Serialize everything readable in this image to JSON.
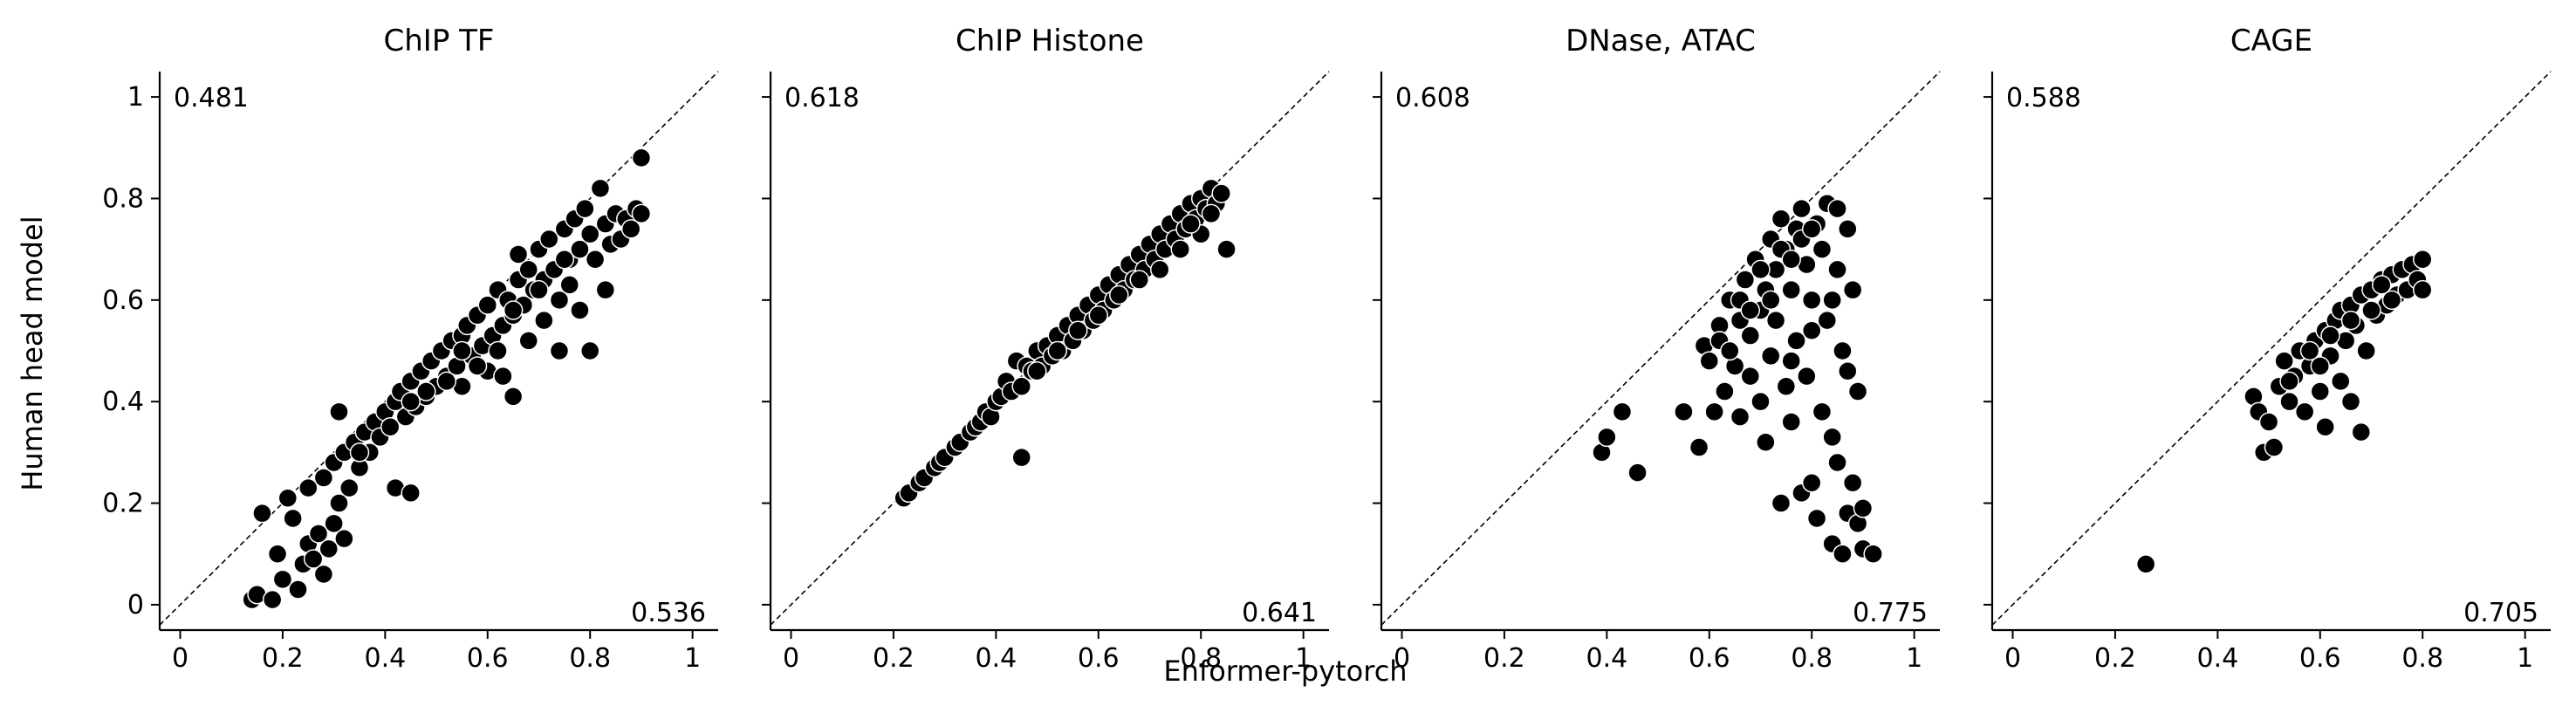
{
  "figure": {
    "ylabel": "Human head model",
    "xlabel": "Enformer-pytorch"
  },
  "chart_data": [
    {
      "type": "scatter",
      "title": "ChIP TF",
      "top_left_label": "0.481",
      "bottom_right_label": "0.536",
      "xlim": [
        -0.04,
        1.05
      ],
      "ylim": [
        -0.05,
        1.05
      ],
      "xticks": [
        "0",
        "0.2",
        "0.4",
        "0.6",
        "0.8",
        "1"
      ],
      "yticks": [
        "0",
        "0.2",
        "0.4",
        "0.6",
        "0.8",
        "1"
      ],
      "diagonal": "y=x dashed",
      "marker_color": "#000000",
      "points": [
        [
          0.14,
          0.01
        ],
        [
          0.15,
          0.02
        ],
        [
          0.16,
          0.18
        ],
        [
          0.18,
          0.01
        ],
        [
          0.19,
          0.1
        ],
        [
          0.2,
          0.05
        ],
        [
          0.21,
          0.21
        ],
        [
          0.22,
          0.17
        ],
        [
          0.23,
          0.03
        ],
        [
          0.24,
          0.08
        ],
        [
          0.25,
          0.12
        ],
        [
          0.25,
          0.23
        ],
        [
          0.26,
          0.09
        ],
        [
          0.27,
          0.14
        ],
        [
          0.28,
          0.06
        ],
        [
          0.28,
          0.25
        ],
        [
          0.29,
          0.11
        ],
        [
          0.3,
          0.16
        ],
        [
          0.3,
          0.28
        ],
        [
          0.31,
          0.2
        ],
        [
          0.31,
          0.38
        ],
        [
          0.32,
          0.13
        ],
        [
          0.32,
          0.3
        ],
        [
          0.33,
          0.23
        ],
        [
          0.34,
          0.32
        ],
        [
          0.35,
          0.27
        ],
        [
          0.36,
          0.34
        ],
        [
          0.37,
          0.3
        ],
        [
          0.38,
          0.36
        ],
        [
          0.39,
          0.33
        ],
        [
          0.4,
          0.38
        ],
        [
          0.41,
          0.35
        ],
        [
          0.42,
          0.23
        ],
        [
          0.42,
          0.4
        ],
        [
          0.43,
          0.42
        ],
        [
          0.44,
          0.37
        ],
        [
          0.45,
          0.22
        ],
        [
          0.45,
          0.44
        ],
        [
          0.46,
          0.39
        ],
        [
          0.47,
          0.46
        ],
        [
          0.48,
          0.41
        ],
        [
          0.49,
          0.48
        ],
        [
          0.5,
          0.43
        ],
        [
          0.51,
          0.5
        ],
        [
          0.52,
          0.45
        ],
        [
          0.53,
          0.52
        ],
        [
          0.54,
          0.47
        ],
        [
          0.55,
          0.53
        ],
        [
          0.55,
          0.43
        ],
        [
          0.56,
          0.55
        ],
        [
          0.57,
          0.49
        ],
        [
          0.58,
          0.57
        ],
        [
          0.59,
          0.51
        ],
        [
          0.6,
          0.59
        ],
        [
          0.6,
          0.46
        ],
        [
          0.61,
          0.53
        ],
        [
          0.62,
          0.62
        ],
        [
          0.63,
          0.55
        ],
        [
          0.63,
          0.45
        ],
        [
          0.64,
          0.6
        ],
        [
          0.65,
          0.41
        ],
        [
          0.65,
          0.57
        ],
        [
          0.66,
          0.69
        ],
        [
          0.66,
          0.64
        ],
        [
          0.67,
          0.59
        ],
        [
          0.68,
          0.52
        ],
        [
          0.68,
          0.66
        ],
        [
          0.69,
          0.62
        ],
        [
          0.7,
          0.7
        ],
        [
          0.71,
          0.56
        ],
        [
          0.71,
          0.64
        ],
        [
          0.72,
          0.72
        ],
        [
          0.73,
          0.66
        ],
        [
          0.74,
          0.6
        ],
        [
          0.74,
          0.5
        ],
        [
          0.75,
          0.74
        ],
        [
          0.76,
          0.68
        ],
        [
          0.76,
          0.63
        ],
        [
          0.77,
          0.76
        ],
        [
          0.78,
          0.7
        ],
        [
          0.78,
          0.58
        ],
        [
          0.79,
          0.78
        ],
        [
          0.8,
          0.73
        ],
        [
          0.8,
          0.5
        ],
        [
          0.81,
          0.68
        ],
        [
          0.82,
          0.82
        ],
        [
          0.83,
          0.75
        ],
        [
          0.83,
          0.62
        ],
        [
          0.84,
          0.71
        ],
        [
          0.85,
          0.77
        ],
        [
          0.86,
          0.72
        ],
        [
          0.87,
          0.76
        ],
        [
          0.88,
          0.74
        ],
        [
          0.89,
          0.78
        ],
        [
          0.9,
          0.88
        ],
        [
          0.9,
          0.77
        ],
        [
          0.35,
          0.3
        ],
        [
          0.45,
          0.4
        ],
        [
          0.55,
          0.5
        ],
        [
          0.65,
          0.58
        ],
        [
          0.7,
          0.62
        ],
        [
          0.75,
          0.68
        ],
        [
          0.62,
          0.5
        ],
        [
          0.58,
          0.47
        ],
        [
          0.52,
          0.44
        ],
        [
          0.48,
          0.42
        ]
      ]
    },
    {
      "type": "scatter",
      "title": "ChIP Histone",
      "top_left_label": "0.618",
      "bottom_right_label": "0.641",
      "xlim": [
        -0.04,
        1.05
      ],
      "ylim": [
        -0.05,
        1.05
      ],
      "xticks": [
        "0",
        "0.2",
        "0.4",
        "0.6",
        "0.8",
        "1"
      ],
      "yticks": [
        "0",
        "0.2",
        "0.4",
        "0.6",
        "0.8",
        "1"
      ],
      "diagonal": "y=x dashed",
      "marker_color": "#000000",
      "points": [
        [
          0.22,
          0.21
        ],
        [
          0.23,
          0.22
        ],
        [
          0.25,
          0.24
        ],
        [
          0.26,
          0.25
        ],
        [
          0.28,
          0.27
        ],
        [
          0.29,
          0.28
        ],
        [
          0.3,
          0.29
        ],
        [
          0.32,
          0.31
        ],
        [
          0.33,
          0.32
        ],
        [
          0.35,
          0.34
        ],
        [
          0.36,
          0.35
        ],
        [
          0.37,
          0.36
        ],
        [
          0.38,
          0.38
        ],
        [
          0.39,
          0.37
        ],
        [
          0.4,
          0.4
        ],
        [
          0.41,
          0.41
        ],
        [
          0.42,
          0.44
        ],
        [
          0.43,
          0.42
        ],
        [
          0.44,
          0.48
        ],
        [
          0.45,
          0.43
        ],
        [
          0.45,
          0.29
        ],
        [
          0.46,
          0.47
        ],
        [
          0.47,
          0.46
        ],
        [
          0.48,
          0.5
        ],
        [
          0.49,
          0.47
        ],
        [
          0.5,
          0.51
        ],
        [
          0.51,
          0.49
        ],
        [
          0.52,
          0.53
        ],
        [
          0.53,
          0.5
        ],
        [
          0.54,
          0.55
        ],
        [
          0.55,
          0.52
        ],
        [
          0.56,
          0.57
        ],
        [
          0.57,
          0.54
        ],
        [
          0.58,
          0.59
        ],
        [
          0.59,
          0.56
        ],
        [
          0.6,
          0.61
        ],
        [
          0.61,
          0.58
        ],
        [
          0.62,
          0.63
        ],
        [
          0.63,
          0.6
        ],
        [
          0.64,
          0.65
        ],
        [
          0.65,
          0.62
        ],
        [
          0.66,
          0.67
        ],
        [
          0.67,
          0.64
        ],
        [
          0.68,
          0.69
        ],
        [
          0.69,
          0.66
        ],
        [
          0.7,
          0.71
        ],
        [
          0.71,
          0.68
        ],
        [
          0.72,
          0.73
        ],
        [
          0.73,
          0.7
        ],
        [
          0.74,
          0.75
        ],
        [
          0.75,
          0.72
        ],
        [
          0.76,
          0.77
        ],
        [
          0.77,
          0.74
        ],
        [
          0.78,
          0.79
        ],
        [
          0.79,
          0.76
        ],
        [
          0.8,
          0.8
        ],
        [
          0.81,
          0.78
        ],
        [
          0.82,
          0.82
        ],
        [
          0.83,
          0.79
        ],
        [
          0.84,
          0.81
        ],
        [
          0.85,
          0.7
        ],
        [
          0.72,
          0.66
        ],
        [
          0.76,
          0.7
        ],
        [
          0.8,
          0.73
        ],
        [
          0.82,
          0.77
        ],
        [
          0.78,
          0.75
        ],
        [
          0.68,
          0.64
        ],
        [
          0.64,
          0.61
        ],
        [
          0.6,
          0.57
        ],
        [
          0.56,
          0.54
        ],
        [
          0.52,
          0.5
        ],
        [
          0.48,
          0.46
        ]
      ]
    },
    {
      "type": "scatter",
      "title": "DNase, ATAC",
      "top_left_label": "0.608",
      "bottom_right_label": "0.775",
      "xlim": [
        -0.04,
        1.05
      ],
      "ylim": [
        -0.05,
        1.05
      ],
      "xticks": [
        "0",
        "0.2",
        "0.4",
        "0.6",
        "0.8",
        "1"
      ],
      "yticks": [
        "0",
        "0.2",
        "0.4",
        "0.6",
        "0.8",
        "1"
      ],
      "diagonal": "y=x dashed",
      "marker_color": "#000000",
      "points": [
        [
          0.39,
          0.3
        ],
        [
          0.4,
          0.33
        ],
        [
          0.43,
          0.38
        ],
        [
          0.46,
          0.26
        ],
        [
          0.55,
          0.38
        ],
        [
          0.58,
          0.31
        ],
        [
          0.59,
          0.51
        ],
        [
          0.6,
          0.48
        ],
        [
          0.61,
          0.38
        ],
        [
          0.62,
          0.55
        ],
        [
          0.63,
          0.42
        ],
        [
          0.64,
          0.6
        ],
        [
          0.65,
          0.47
        ],
        [
          0.66,
          0.37
        ],
        [
          0.66,
          0.56
        ],
        [
          0.67,
          0.64
        ],
        [
          0.68,
          0.45
        ],
        [
          0.68,
          0.53
        ],
        [
          0.69,
          0.68
        ],
        [
          0.7,
          0.58
        ],
        [
          0.7,
          0.4
        ],
        [
          0.71,
          0.62
        ],
        [
          0.71,
          0.32
        ],
        [
          0.72,
          0.49
        ],
        [
          0.72,
          0.72
        ],
        [
          0.73,
          0.66
        ],
        [
          0.73,
          0.56
        ],
        [
          0.74,
          0.2
        ],
        [
          0.74,
          0.76
        ],
        [
          0.75,
          0.43
        ],
        [
          0.75,
          0.7
        ],
        [
          0.76,
          0.62
        ],
        [
          0.76,
          0.36
        ],
        [
          0.77,
          0.74
        ],
        [
          0.77,
          0.52
        ],
        [
          0.78,
          0.22
        ],
        [
          0.78,
          0.78
        ],
        [
          0.79,
          0.67
        ],
        [
          0.79,
          0.45
        ],
        [
          0.8,
          0.6
        ],
        [
          0.8,
          0.24
        ],
        [
          0.81,
          0.75
        ],
        [
          0.81,
          0.17
        ],
        [
          0.82,
          0.7
        ],
        [
          0.82,
          0.38
        ],
        [
          0.83,
          0.79
        ],
        [
          0.83,
          0.56
        ],
        [
          0.84,
          0.12
        ],
        [
          0.84,
          0.33
        ],
        [
          0.85,
          0.66
        ],
        [
          0.85,
          0.28
        ],
        [
          0.86,
          0.5
        ],
        [
          0.86,
          0.1
        ],
        [
          0.87,
          0.74
        ],
        [
          0.87,
          0.46
        ],
        [
          0.87,
          0.18
        ],
        [
          0.88,
          0.62
        ],
        [
          0.88,
          0.24
        ],
        [
          0.89,
          0.16
        ],
        [
          0.89,
          0.42
        ],
        [
          0.9,
          0.19
        ],
        [
          0.9,
          0.11
        ],
        [
          0.92,
          0.1
        ],
        [
          0.62,
          0.52
        ],
        [
          0.66,
          0.6
        ],
        [
          0.7,
          0.66
        ],
        [
          0.74,
          0.7
        ],
        [
          0.78,
          0.72
        ],
        [
          0.8,
          0.74
        ],
        [
          0.72,
          0.6
        ],
        [
          0.68,
          0.58
        ],
        [
          0.64,
          0.5
        ],
        [
          0.76,
          0.68
        ],
        [
          0.84,
          0.6
        ],
        [
          0.8,
          0.54
        ],
        [
          0.76,
          0.48
        ],
        [
          0.85,
          0.78
        ]
      ]
    },
    {
      "type": "scatter",
      "title": "CAGE",
      "top_left_label": "0.588",
      "bottom_right_label": "0.705",
      "xlim": [
        -0.04,
        1.05
      ],
      "ylim": [
        -0.05,
        1.05
      ],
      "xticks": [
        "0",
        "0.2",
        "0.4",
        "0.6",
        "0.8",
        "1"
      ],
      "yticks": [
        "0",
        "0.2",
        "0.4",
        "0.6",
        "0.8",
        "1"
      ],
      "diagonal": "y=x dashed",
      "marker_color": "#000000",
      "points": [
        [
          0.26,
          0.08
        ],
        [
          0.47,
          0.41
        ],
        [
          0.48,
          0.38
        ],
        [
          0.49,
          0.3
        ],
        [
          0.5,
          0.36
        ],
        [
          0.51,
          0.31
        ],
        [
          0.52,
          0.43
        ],
        [
          0.53,
          0.48
        ],
        [
          0.54,
          0.4
        ],
        [
          0.55,
          0.45
        ],
        [
          0.56,
          0.5
        ],
        [
          0.57,
          0.38
        ],
        [
          0.58,
          0.47
        ],
        [
          0.59,
          0.52
        ],
        [
          0.6,
          0.42
        ],
        [
          0.61,
          0.35
        ],
        [
          0.61,
          0.54
        ],
        [
          0.62,
          0.49
        ],
        [
          0.63,
          0.56
        ],
        [
          0.64,
          0.44
        ],
        [
          0.64,
          0.58
        ],
        [
          0.65,
          0.52
        ],
        [
          0.66,
          0.4
        ],
        [
          0.66,
          0.59
        ],
        [
          0.67,
          0.55
        ],
        [
          0.68,
          0.34
        ],
        [
          0.68,
          0.61
        ],
        [
          0.69,
          0.5
        ],
        [
          0.7,
          0.62
        ],
        [
          0.71,
          0.57
        ],
        [
          0.72,
          0.64
        ],
        [
          0.73,
          0.59
        ],
        [
          0.74,
          0.65
        ],
        [
          0.75,
          0.61
        ],
        [
          0.76,
          0.66
        ],
        [
          0.77,
          0.62
        ],
        [
          0.78,
          0.67
        ],
        [
          0.79,
          0.64
        ],
        [
          0.8,
          0.68
        ],
        [
          0.8,
          0.62
        ],
        [
          0.58,
          0.5
        ],
        [
          0.62,
          0.53
        ],
        [
          0.66,
          0.56
        ],
        [
          0.7,
          0.58
        ],
        [
          0.74,
          0.6
        ],
        [
          0.72,
          0.63
        ],
        [
          0.6,
          0.47
        ],
        [
          0.54,
          0.44
        ]
      ]
    }
  ]
}
